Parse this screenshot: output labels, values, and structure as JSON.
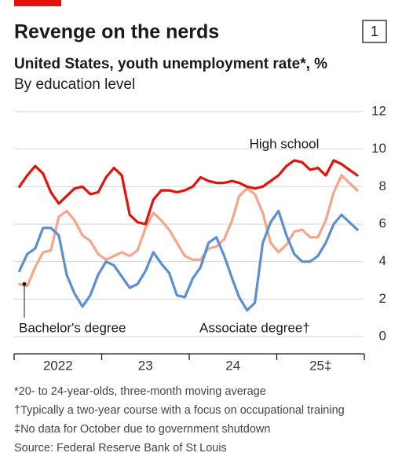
{
  "chart_data": {
    "type": "line",
    "chart_number": "1",
    "title": "Revenge on the nerds",
    "subtitle": "United States, youth unemployment rate*, %",
    "subtitle2": "By education level",
    "x": [
      2022.06,
      2022.15,
      2022.24,
      2022.33,
      2022.42,
      2022.51,
      2022.6,
      2022.69,
      2022.78,
      2022.87,
      2022.96,
      2023.05,
      2023.14,
      2023.23,
      2023.32,
      2023.41,
      2023.5,
      2023.59,
      2023.68,
      2023.77,
      2023.86,
      2023.95,
      2024.04,
      2024.13,
      2024.22,
      2024.31,
      2024.4,
      2024.49,
      2024.57,
      2024.66,
      2024.75,
      2024.84,
      2024.93,
      2025.02,
      2025.11,
      2025.2,
      2025.29,
      2025.38,
      2025.47,
      2025.56,
      2025.65,
      2025.74,
      2025.83,
      2025.92
    ],
    "series": [
      {
        "name": "High school",
        "color": "#e3120b",
        "values": [
          8.0,
          8.6,
          9.1,
          8.7,
          7.7,
          7.1,
          7.5,
          7.9,
          8.0,
          7.6,
          7.7,
          8.5,
          9.0,
          8.6,
          6.5,
          6.1,
          6.0,
          7.3,
          7.8,
          7.8,
          7.7,
          7.8,
          8.0,
          8.5,
          8.3,
          8.2,
          8.2,
          8.3,
          8.2,
          8.0,
          7.9,
          8.0,
          8.3,
          8.6,
          9.1,
          9.4,
          9.3,
          8.9,
          9.0,
          8.6,
          9.4,
          9.2,
          8.9,
          8.6
        ]
      },
      {
        "name": "Bachelor's degree",
        "color": "#f4a58a",
        "values": [
          2.8,
          2.7,
          3.7,
          4.5,
          4.6,
          6.4,
          6.7,
          6.2,
          5.4,
          5.1,
          4.4,
          4.1,
          4.3,
          4.5,
          4.3,
          4.6,
          5.8,
          6.6,
          6.2,
          5.7,
          5.0,
          4.3,
          4.1,
          4.1,
          4.7,
          4.8,
          5.2,
          6.2,
          7.5,
          7.9,
          7.6,
          6.6,
          5.0,
          4.5,
          4.9,
          5.6,
          5.7,
          5.3,
          5.3,
          6.2,
          7.7,
          8.6,
          8.2,
          7.8
        ]
      },
      {
        "name": "Associate degree†",
        "color": "#5b8fd4",
        "values": [
          3.5,
          4.4,
          4.7,
          5.8,
          5.8,
          5.4,
          3.3,
          2.3,
          1.6,
          2.2,
          3.3,
          4.0,
          3.8,
          3.2,
          2.6,
          2.8,
          3.5,
          4.5,
          3.9,
          3.4,
          2.2,
          2.1,
          3.1,
          3.7,
          5.0,
          5.3,
          4.3,
          3.1,
          2.1,
          1.4,
          1.8,
          5.0,
          6.1,
          6.7,
          5.4,
          4.4,
          4.0,
          4.0,
          4.3,
          5.0,
          6.0,
          6.5,
          6.1,
          5.7
        ]
      }
    ],
    "xlim": [
      2022,
      2026
    ],
    "xticks": [
      2022,
      2023,
      2024,
      2025,
      2026
    ],
    "xtick_labels": [
      {
        "value": 2022.5,
        "label": "2022"
      },
      {
        "value": 2023.5,
        "label": "23"
      },
      {
        "value": 2024.5,
        "label": "24"
      },
      {
        "value": 2025.5,
        "label": "25‡"
      }
    ],
    "ylim": [
      0,
      12
    ],
    "yticks": [
      0,
      2,
      4,
      6,
      8,
      10,
      12
    ],
    "grid": true,
    "footnotes": [
      "*20- to 24-year-olds, three-month moving average",
      "†Typically a two-year course with a focus on occupational training",
      "‡No data for October due to government shutdown",
      "Source: Federal Reserve Bank of St Louis"
    ]
  }
}
